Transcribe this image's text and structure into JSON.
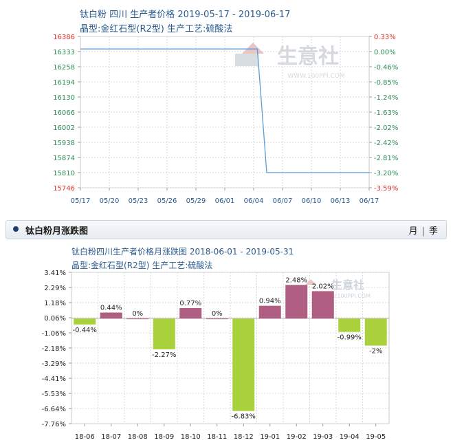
{
  "panel": {
    "title": "钛白粉月涨跌图",
    "tab_month": "月",
    "tab_separator": "|",
    "tab_quarter": "季"
  },
  "watermark": {
    "text": "生意社",
    "url": "WWW.100PPI.COM"
  },
  "colors": {
    "price_line": "#5b9bd5",
    "left_axis_labels": "#2e8b57",
    "right_axis_labels": "#2e8b57",
    "extreme_labels": "#e0302a",
    "positive_bar": "#b05d82",
    "negative_bar": "#a8d13c",
    "grid": "#d8d8d8",
    "title_text": "#2a5b8f"
  },
  "chart_data": [
    {
      "type": "line",
      "title": "钛白粉 四川 生产者价格 2019-05-17 - 2019-06-17",
      "subtitle": "晶型:金红石型(R2型) 生产工艺:硫酸法",
      "x_tick_labels": [
        "05/17",
        "05/20",
        "05/23",
        "05/26",
        "05/29",
        "06/01",
        "06/04",
        "06/07",
        "06/10",
        "06/13",
        "06/17"
      ],
      "y_left_ticks": [
        "16386",
        "16333",
        "16258",
        "16194",
        "16130",
        "16066",
        "16002",
        "15938",
        "15874",
        "15810",
        "15746"
      ],
      "y_right_ticks": [
        "0.33%",
        "0.00%",
        "-0.46%",
        "-0.85%",
        "-1.24%",
        "-1.63%",
        "-2.02%",
        "-2.42%",
        "-2.81%",
        "-3.20%",
        "-3.59%"
      ],
      "ylim": [
        15746,
        16386
      ],
      "grid": true,
      "series": [
        {
          "x": [
            "2019-05-17",
            "2019-06-05",
            "2019-06-06",
            "2019-06-17"
          ],
          "values": [
            16333,
            16333,
            15810,
            15810
          ]
        }
      ]
    },
    {
      "type": "bar",
      "title": "钛白粉四川生产者价格月涨跌图 2018-06-01 - 2019-05-31",
      "subtitle": "晶型:金红石型(R2型) 生产工艺:硫酸法",
      "categories": [
        "18-06",
        "18-07",
        "18-08",
        "18-09",
        "18-10",
        "18-11",
        "18-12",
        "19-01",
        "19-02",
        "19-03",
        "19-04",
        "19-05"
      ],
      "values": [
        -0.44,
        0.44,
        0,
        -2.27,
        0.77,
        0,
        -6.83,
        0.94,
        2.48,
        2.02,
        -0.99,
        -2
      ],
      "data_labels": [
        "-0.44%",
        "0.44%",
        "0%",
        "-2.27%",
        "0.77%",
        "0%",
        "-6.83%",
        "0.94%",
        "2.48%",
        "2.02%",
        "-0.99%",
        "-2%"
      ],
      "y_ticks": [
        "3.41%",
        "2.29%",
        "1.18%",
        "0.06%",
        "-1.06%",
        "-2.18%",
        "-3.29%",
        "-4.41%",
        "-5.53%",
        "-6.64%",
        "-7.76%"
      ],
      "ylim": [
        -7.76,
        3.41
      ],
      "grid": true
    }
  ]
}
